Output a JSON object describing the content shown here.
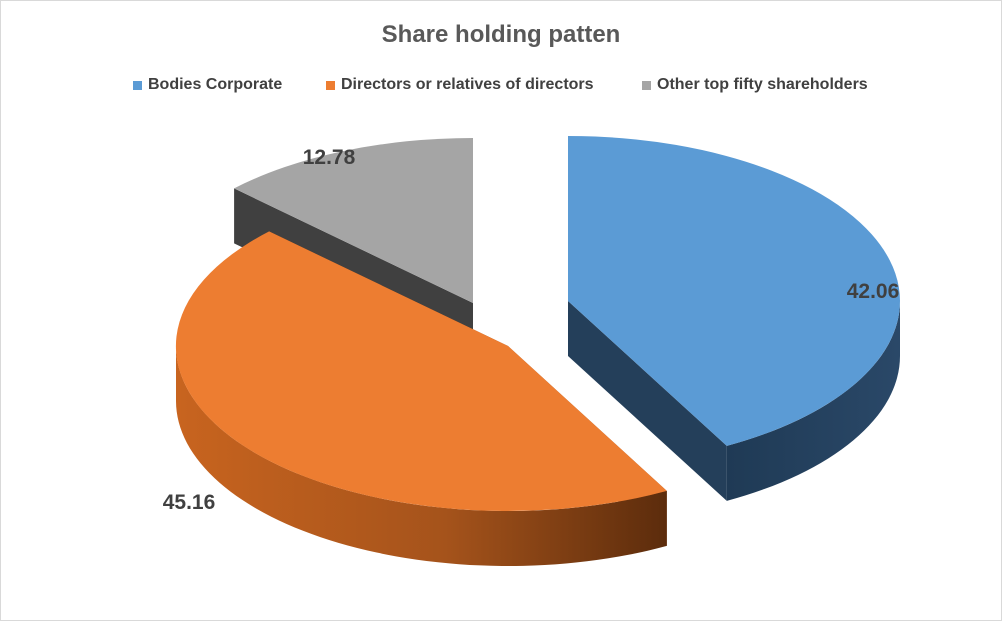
{
  "chart_data": {
    "type": "pie",
    "title": "Share holding patten",
    "legend_position": "top",
    "exploded": true,
    "three_d": true,
    "categories": [
      "Bodies Corporate",
      "Directors or relatives of directors",
      "Other top fifty shareholders"
    ],
    "values": [
      42.06,
      45.16,
      12.78
    ],
    "data_labels": [
      "42.06",
      "45.16",
      "12.78"
    ],
    "colors": [
      "#5b9bd5",
      "#ed7d31",
      "#a5a5a5"
    ],
    "side_colors": [
      "#243f5a",
      "#8a4518",
      "#404040"
    ]
  }
}
